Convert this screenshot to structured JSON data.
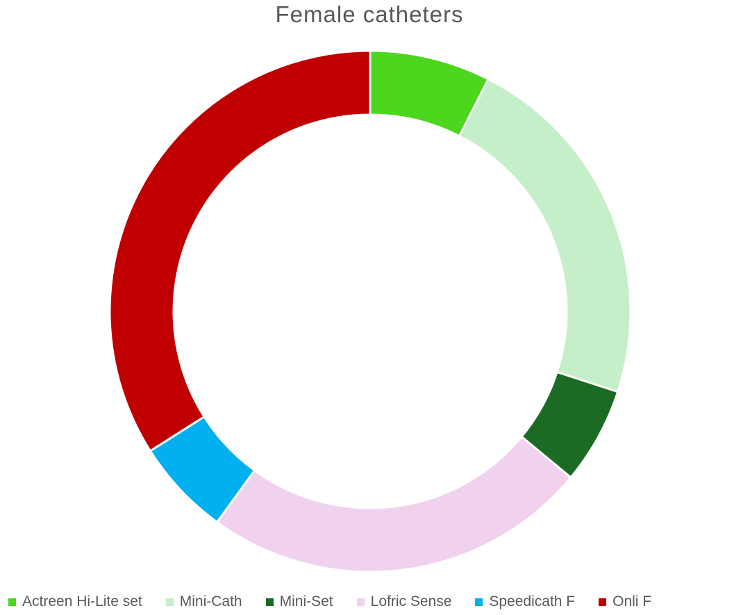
{
  "chart_data": {
    "type": "pie",
    "variant": "donut",
    "title": "Female catheters",
    "categories": [
      "Actreen Hi-Lite set",
      "Mini-Cath",
      "Mini-Set",
      "Lofric Sense",
      "Speedicath F",
      "Onli F"
    ],
    "values": [
      7.5,
      22.5,
      6.0,
      24.0,
      6.0,
      34.0
    ],
    "colors": [
      "#4cd61e",
      "#c5efc8",
      "#1b6b24",
      "#f0d2ee",
      "#00b0ef",
      "#c00000"
    ],
    "legend_position": "bottom"
  }
}
